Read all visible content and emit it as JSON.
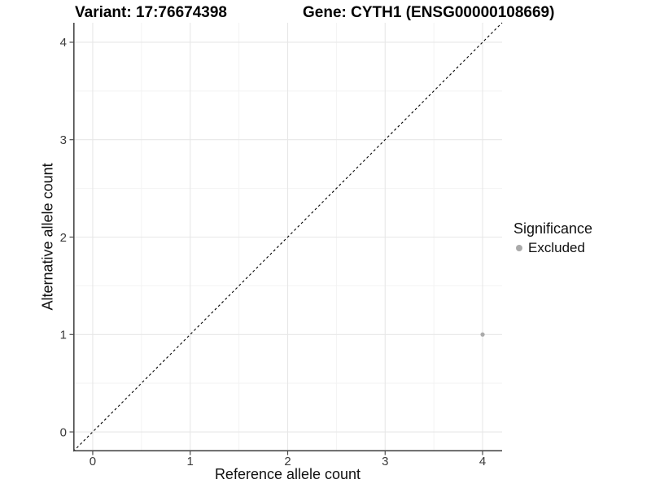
{
  "chart_data": {
    "type": "scatter",
    "titles": {
      "left": "Variant: 17:76674398",
      "right": "Gene: CYTH1 (ENSG00000108669)"
    },
    "xlabel": "Reference allele count",
    "ylabel": "Alternative allele count",
    "xlim": [
      -0.2,
      4.2
    ],
    "ylim": [
      -0.2,
      4.2
    ],
    "x_ticks": [
      0,
      1,
      2,
      3,
      4
    ],
    "y_ticks": [
      0,
      1,
      2,
      3,
      4
    ],
    "x_minor": [
      0.5,
      1.5,
      2.5,
      3.5
    ],
    "y_minor": [
      0.5,
      1.5,
      2.5,
      3.5
    ],
    "grid": "major+minor",
    "reference_line": {
      "type": "identity y=x",
      "style": "dashed",
      "color": "#000000"
    },
    "series": [
      {
        "name": "Excluded",
        "color": "#aaaaaa",
        "points": [
          {
            "x": 4,
            "y": 1
          }
        ]
      }
    ],
    "legend": {
      "title": "Significance",
      "position": "right",
      "items": [
        {
          "label": "Excluded",
          "color": "#aaaaaa"
        }
      ]
    }
  }
}
